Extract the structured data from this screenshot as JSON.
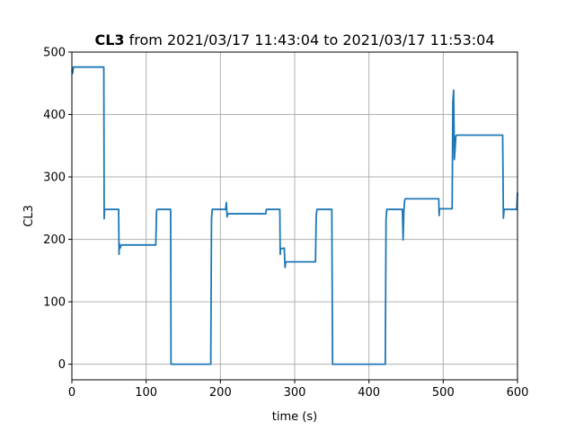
{
  "chart_data": {
    "type": "line",
    "title_bold": "CL3",
    "title_rest": " from 2021/03/17 11:43:04 to 2021/03/17 11:53:04",
    "xlabel": "time (s)",
    "ylabel": "CL3",
    "xlim": [
      0,
      600
    ],
    "ylim": [
      -25,
      500
    ],
    "xticks": [
      0,
      100,
      200,
      300,
      400,
      500,
      600
    ],
    "yticks": [
      0,
      100,
      200,
      300,
      400,
      500
    ],
    "grid": true,
    "line_color": "#1f77b4",
    "series": [
      {
        "x": [
          0,
          1,
          2,
          3,
          5,
          43,
          43.5,
          44,
          45,
          63,
          63.5,
          64,
          65,
          66,
          67,
          70,
          113,
          114,
          115,
          116,
          133,
          133.5,
          187,
          188,
          189,
          190,
          207,
          208,
          209,
          210,
          261,
          262,
          280,
          280.5,
          281,
          282,
          286,
          287,
          288,
          290,
          328,
          329,
          330,
          331,
          350,
          351,
          422,
          423,
          424,
          425,
          445,
          446,
          447,
          448,
          449,
          450,
          452,
          494,
          494.5,
          495,
          496,
          512,
          513,
          514,
          515,
          516,
          517,
          519,
          520,
          580,
          581,
          582,
          583,
          599,
          600
        ],
        "values": [
          470,
          466,
          476,
          476,
          476,
          476,
          233,
          248,
          248,
          248,
          176,
          193,
          186,
          190,
          191,
          191,
          191,
          246,
          248,
          248,
          248,
          0,
          0,
          232,
          248,
          248,
          248,
          259,
          236,
          241,
          241,
          248,
          248,
          176,
          186,
          185,
          186,
          155,
          164,
          164,
          164,
          238,
          248,
          248,
          248,
          0,
          0,
          232,
          248,
          248,
          248,
          199,
          245,
          262,
          265,
          265,
          265,
          265,
          238,
          249,
          249,
          249,
          420,
          439,
          328,
          345,
          366,
          367,
          367,
          367,
          234,
          248,
          248,
          248,
          275
        ]
      }
    ]
  }
}
